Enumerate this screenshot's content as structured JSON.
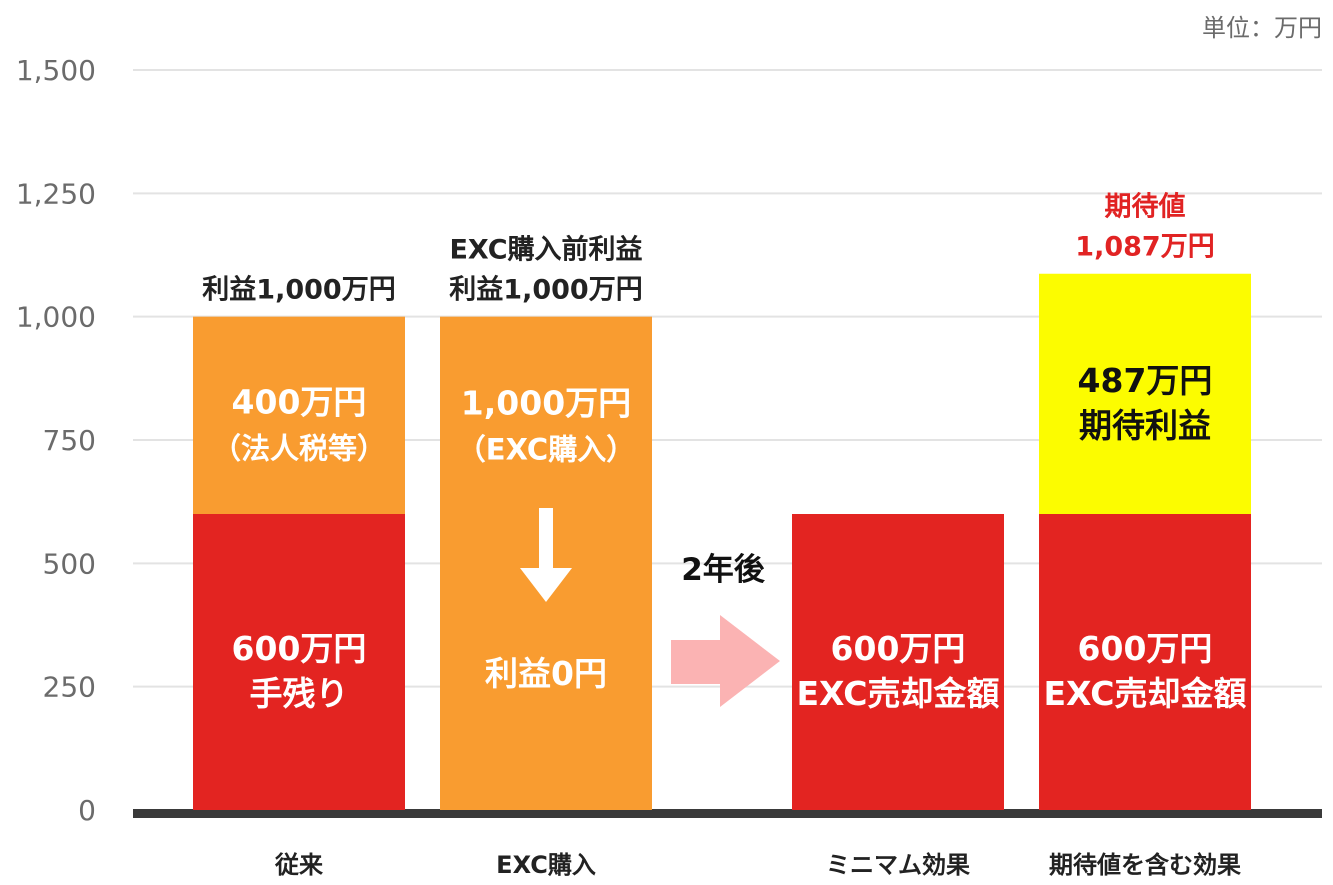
{
  "unit_label": "単位：万円",
  "chart_data": {
    "type": "bar",
    "stacked": true,
    "ylim": [
      0,
      1500
    ],
    "yticks": [
      0,
      250,
      500,
      750,
      1000,
      1250,
      1500
    ],
    "ytick_labels": [
      "0",
      "250",
      "500",
      "750",
      "1,000",
      "1,250",
      "1,500"
    ],
    "grid": true,
    "categories": [
      "従来",
      "EXC購入",
      "ミニマム効果",
      "期待値を含む効果"
    ],
    "colors": {
      "red": "#e32421",
      "orange": "#f99c30",
      "yellow": "#fcfc00",
      "arrow_pink": "#fbb3b3",
      "top_label_red": "#e12323",
      "baseline": "#3a3a3a",
      "grid": "#e3e3e3"
    },
    "bars": [
      {
        "category": "従来",
        "top_labels": [
          "利益1,000万円"
        ],
        "segments": [
          {
            "value": 600,
            "color": "red",
            "label_lines": [
              "600万円",
              "手残り"
            ]
          },
          {
            "value": 400,
            "color": "orange",
            "label_lines": [
              "400万円",
              "（法人税等）"
            ]
          }
        ]
      },
      {
        "category": "EXC購入",
        "top_labels": [
          "EXC購入前利益",
          "利益1,000万円"
        ],
        "segments": [
          {
            "value": 1000,
            "color": "orange",
            "label_lines": [
              "1,000万円",
              "（EXC購入）"
            ],
            "bottom_label": "利益0円"
          }
        ]
      },
      {
        "category": "ミニマム効果",
        "top_labels": [],
        "segments": [
          {
            "value": 600,
            "color": "red",
            "label_lines": [
              "600万円",
              "EXC売却金額"
            ]
          }
        ]
      },
      {
        "category": "期待値を含む効果",
        "top_labels": [
          "期待値",
          "1,087万円"
        ],
        "top_label_color": "red",
        "segments": [
          {
            "value": 600,
            "color": "red",
            "label_lines": [
              "600万円",
              "EXC売却金額"
            ]
          },
          {
            "value": 487,
            "color": "yellow",
            "label_lines": [
              "487万円",
              "期待利益"
            ]
          }
        ]
      }
    ],
    "annotation": "2年後"
  }
}
